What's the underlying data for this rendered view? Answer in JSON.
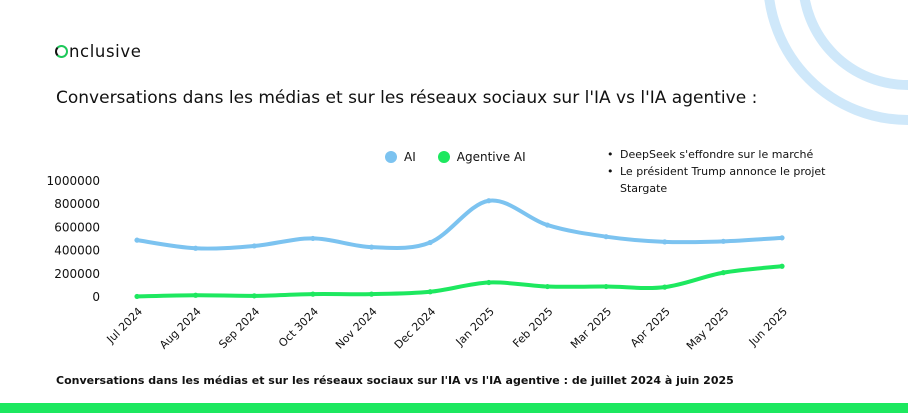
{
  "brand": {
    "logo_text": "nclusive",
    "logo_letter": "O",
    "accent_color": "#1de85f"
  },
  "header": {
    "title": "Conversations dans les médias et sur les réseaux sociaux sur l'IA vs l'IA agentive :"
  },
  "annotations": [
    "DeepSeek s'effondre sur le marché",
    "Le président Trump annonce le projet Stargate"
  ],
  "footer": {
    "caption": "Conversations dans les médias et sur les réseaux sociaux sur l'IA vs l'IA agentive : de juillet 2024 à juin 2025"
  },
  "chart_data": {
    "type": "line",
    "title": "",
    "xlabel": "",
    "ylabel": "",
    "categories": [
      "Jul 2024",
      "Aug 2024",
      "Sep 2024",
      "Oct 3024",
      "Nov 2024",
      "Dec 2024",
      "Jan 2025",
      "Feb 2025",
      "Mar 2025",
      "Apr 2025",
      "May 2025",
      "Jun 2025"
    ],
    "ylim": [
      0,
      1000000
    ],
    "yticks": [
      "0",
      "200000",
      "400000",
      "600000",
      "800000",
      "1000000"
    ],
    "grid": false,
    "legend_position": "top",
    "series": [
      {
        "name": "AI",
        "color": "#7cc3f0",
        "values": [
          490000,
          420000,
          440000,
          505000,
          430000,
          470000,
          830000,
          620000,
          520000,
          475000,
          480000,
          510000
        ]
      },
      {
        "name": "Agentive AI",
        "color": "#1de85f",
        "values": [
          5000,
          15000,
          10000,
          25000,
          25000,
          45000,
          125000,
          90000,
          90000,
          85000,
          210000,
          265000
        ]
      }
    ]
  }
}
